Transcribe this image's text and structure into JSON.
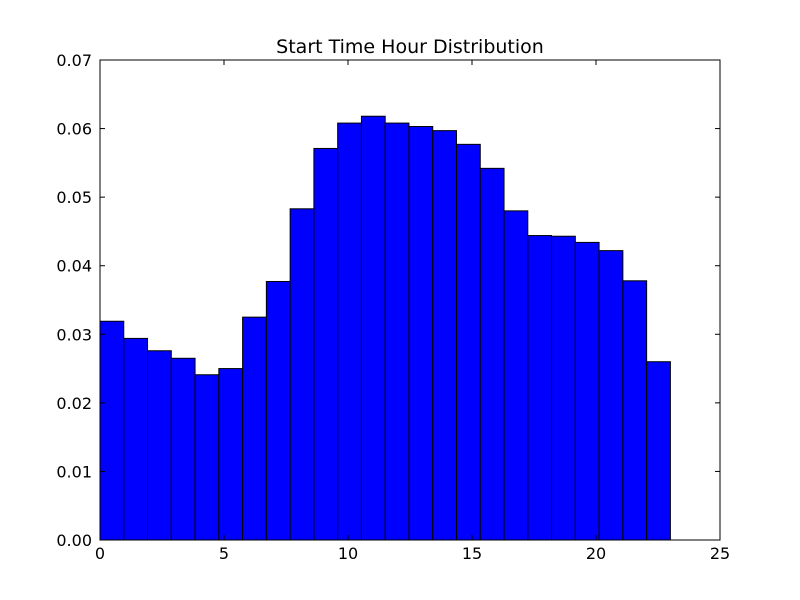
{
  "chart_data": {
    "type": "bar",
    "title": "Start Time Hour Distribution",
    "xlabel": "",
    "ylabel": "",
    "xlim": [
      0,
      25
    ],
    "ylim": [
      0,
      0.07
    ],
    "x_ticks": [
      0,
      5,
      10,
      15,
      20,
      25
    ],
    "x_tick_labels": [
      "0",
      "5",
      "10",
      "15",
      "20",
      "25"
    ],
    "y_ticks": [
      0,
      0.01,
      0.02,
      0.03,
      0.04,
      0.05,
      0.06,
      0.07
    ],
    "y_tick_labels": [
      "0.00",
      "0.01",
      "0.02",
      "0.03",
      "0.04",
      "0.05",
      "0.06",
      "0.07"
    ],
    "bin_edges": [
      0,
      0.9583,
      1.9167,
      2.875,
      3.8333,
      4.7917,
      5.75,
      6.7083,
      7.6667,
      8.625,
      9.5833,
      10.5417,
      11.5,
      12.4583,
      13.4167,
      14.375,
      15.3333,
      16.2917,
      17.25,
      18.2083,
      19.1667,
      20.125,
      21.0833,
      22.0417,
      23
    ],
    "values": [
      0.0319,
      0.0294,
      0.0276,
      0.0265,
      0.0241,
      0.025,
      0.0325,
      0.0377,
      0.0483,
      0.0571,
      0.0608,
      0.0618,
      0.0608,
      0.0603,
      0.0597,
      0.0577,
      0.0542,
      0.048,
      0.0444,
      0.0443,
      0.0434,
      0.0422,
      0.0378,
      0.026
    ],
    "bar_color": "#0000ff",
    "edge_color": "#000000",
    "grid": false,
    "legend": "none"
  }
}
